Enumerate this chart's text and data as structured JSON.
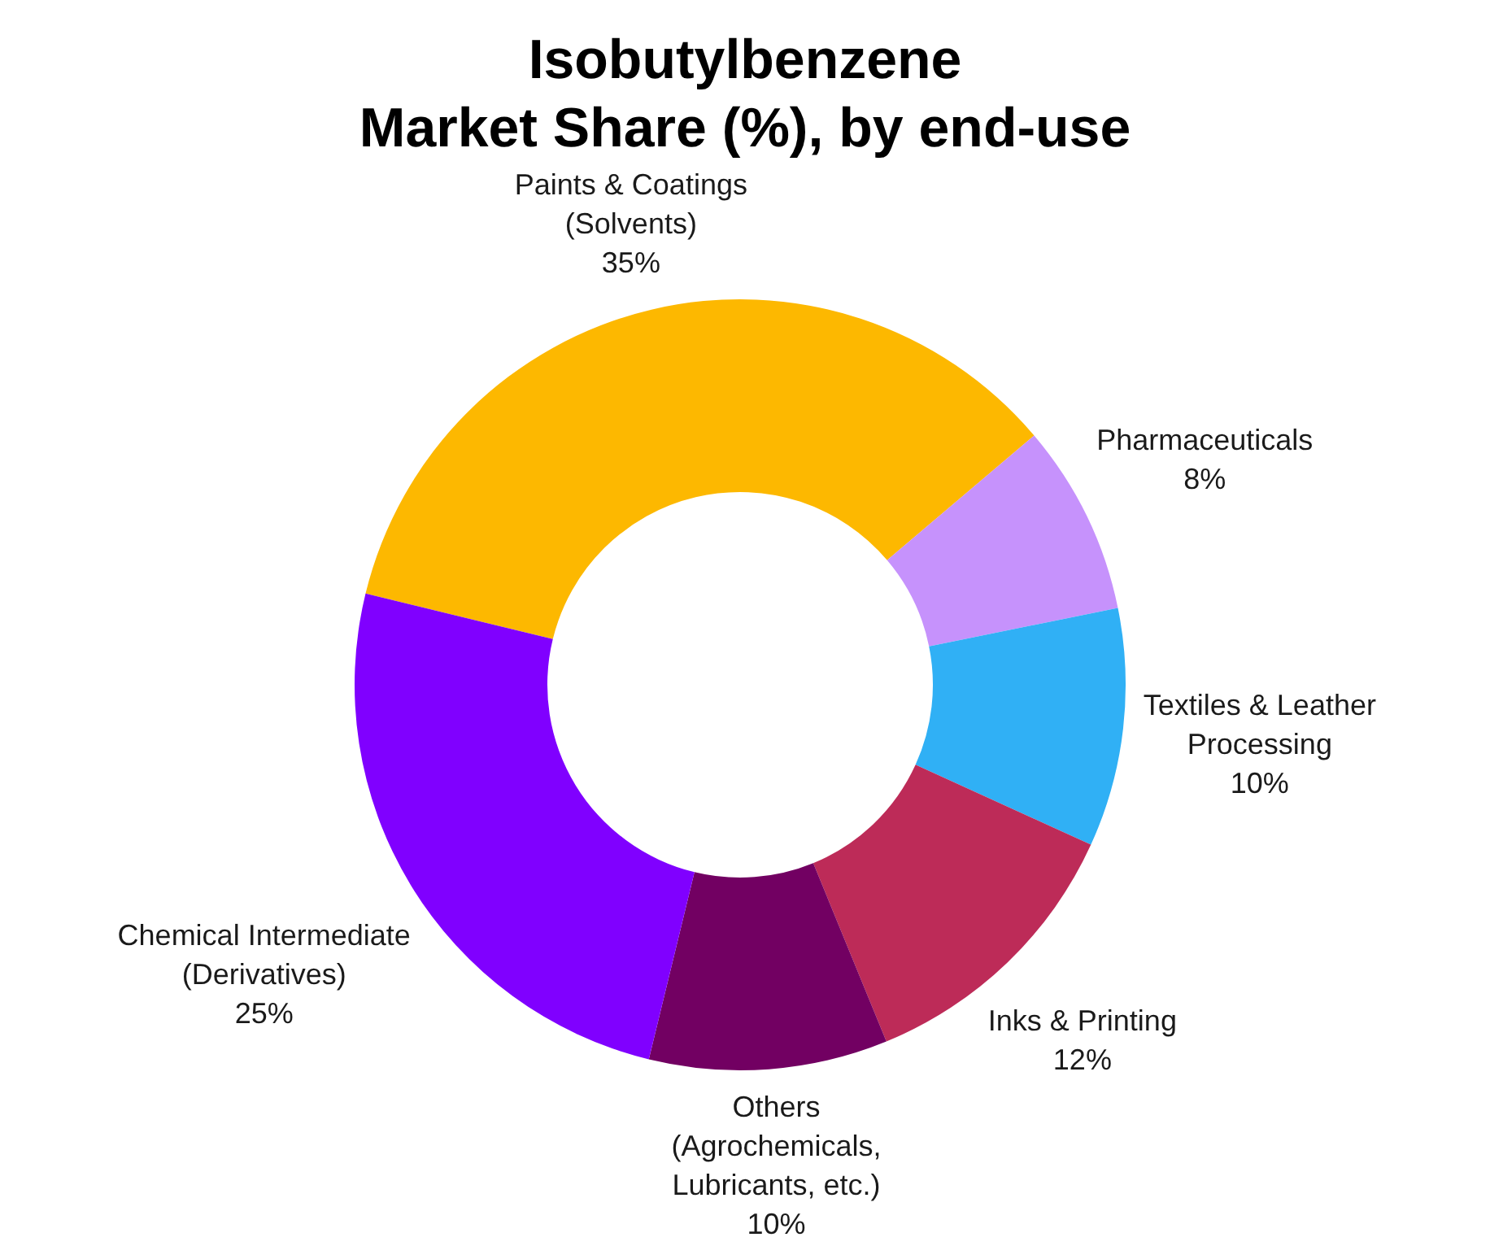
{
  "chart_data": {
    "type": "donut",
    "title": "Isobutylbenzene\nMarket Share (%), by end-use",
    "categories": [
      "Paints & Coatings (Solvents)",
      "Pharmaceuticals",
      "Textiles & Leather Processing",
      "Inks & Printing",
      "Others (Agrochemicals, Lubricants, etc.)",
      "Chemical Intermediate (Derivatives)"
    ],
    "values": [
      35,
      8,
      10,
      12,
      10,
      25
    ],
    "colors": [
      "#fdb800",
      "#c692fc",
      "#30b0f5",
      "#bd2b58",
      "#720062",
      "#8000ff"
    ],
    "value_labels": [
      "35%",
      "8%",
      "10%",
      "12%",
      "10%",
      "25%"
    ]
  }
}
